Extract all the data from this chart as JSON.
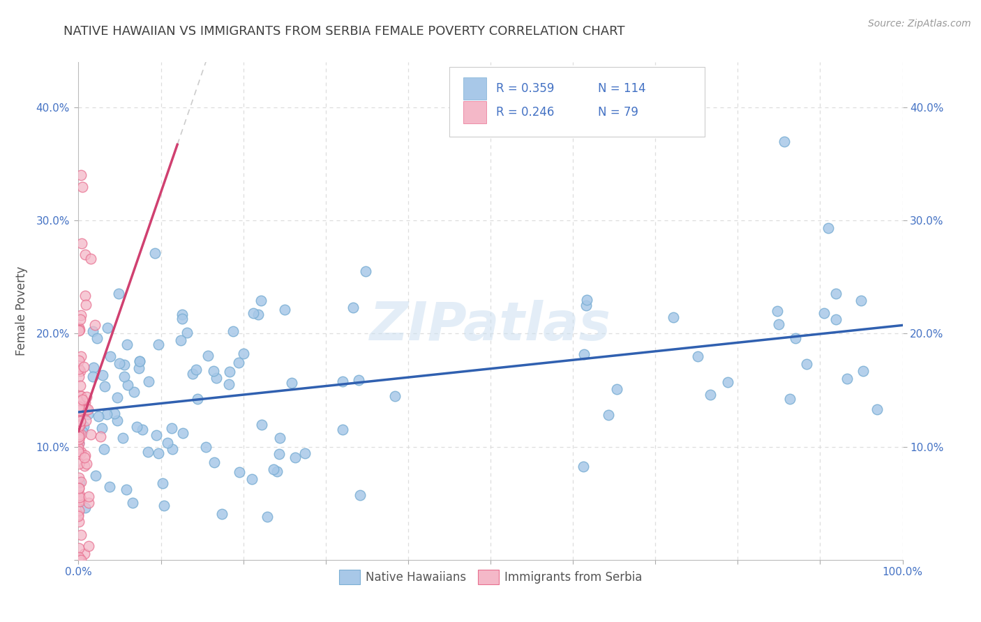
{
  "title": "NATIVE HAWAIIAN VS IMMIGRANTS FROM SERBIA FEMALE POVERTY CORRELATION CHART",
  "source": "Source: ZipAtlas.com",
  "ylabel": "Female Poverty",
  "xlim": [
    0,
    1.0
  ],
  "ylim": [
    0,
    0.44
  ],
  "legend_r1": "R = 0.359",
  "legend_n1": "N = 114",
  "legend_r2": "R = 0.246",
  "legend_n2": "N = 79",
  "series1_color": "#a8c8e8",
  "series1_edge": "#7bafd4",
  "series2_color": "#f4b8c8",
  "series2_edge": "#e87090",
  "line1_color": "#3060b0",
  "line2_color": "#d04070",
  "line2_dash_color": "#cccccc",
  "watermark_color": "#c8ddf0",
  "background_color": "#ffffff",
  "grid_color": "#dddddd",
  "title_color": "#404040",
  "tick_color": "#4472c4",
  "legend_text_color": "#4472c4"
}
